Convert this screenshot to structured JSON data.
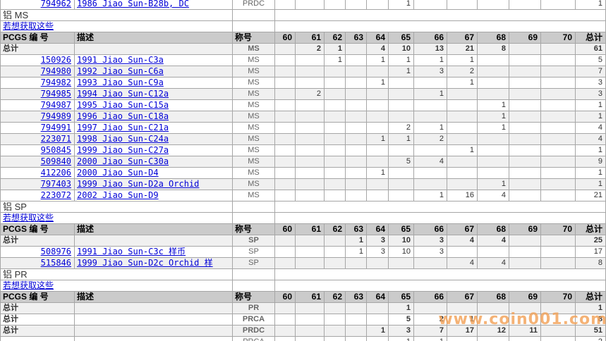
{
  "watermark": {
    "text": "www.coin001.com",
    "color": "#F2A055"
  },
  "grades": [
    "60",
    "61",
    "62",
    "63",
    "64",
    "65",
    "66",
    "67",
    "68",
    "69",
    "70"
  ],
  "header_labels": {
    "pcgs": "PCGS 编 号",
    "desc": "描述",
    "designation": "称号",
    "total": "总计"
  },
  "total_row_label": "总计",
  "link_label": "若想获取这些",
  "partial_top_row": {
    "pcgs": "794962",
    "desc": "1986 Jiao Sun-B28b, DC",
    "designation": "PRDC",
    "values": {
      "65": "1"
    },
    "total": "1"
  },
  "sections": [
    {
      "title": "铝 MS",
      "total_rows": [
        {
          "designation": "MS",
          "values": {
            "61": "2",
            "62": "1",
            "64": "4",
            "65": "10",
            "66": "13",
            "67": "21",
            "68": "8"
          },
          "total": "61"
        }
      ],
      "coin_rows": [
        {
          "pcgs": "150926",
          "desc": "1991 Jiao Sun-C3a",
          "designation": "MS",
          "values": {
            "62": "1",
            "64": "1",
            "65": "1",
            "66": "1",
            "67": "1"
          },
          "total": "5"
        },
        {
          "pcgs": "794980",
          "desc": "1992 Jiao Sun-C6a",
          "designation": "MS",
          "values": {
            "65": "1",
            "66": "3",
            "67": "2"
          },
          "total": "7"
        },
        {
          "pcgs": "794982",
          "desc": "1993 Jiao Sun-C9a",
          "designation": "MS",
          "values": {
            "64": "1",
            "67": "1"
          },
          "total": "3"
        },
        {
          "pcgs": "794985",
          "desc": "1994 Jiao Sun-C12a",
          "designation": "MS",
          "values": {
            "61": "2",
            "66": "1"
          },
          "total": "3"
        },
        {
          "pcgs": "794987",
          "desc": "1995 Jiao Sun-C15a",
          "designation": "MS",
          "values": {
            "68": "1"
          },
          "total": "1"
        },
        {
          "pcgs": "794989",
          "desc": "1996 Jiao Sun-C18a",
          "designation": "MS",
          "values": {
            "68": "1"
          },
          "total": "1"
        },
        {
          "pcgs": "794991",
          "desc": "1997 Jiao Sun-C21a",
          "designation": "MS",
          "values": {
            "65": "2",
            "66": "1",
            "68": "1"
          },
          "total": "4"
        },
        {
          "pcgs": "223071",
          "desc": "1998 Jiao Sun-C24a",
          "designation": "MS",
          "values": {
            "64": "1",
            "65": "1",
            "66": "2"
          },
          "total": "4"
        },
        {
          "pcgs": "950845",
          "desc": "1999 Jiao Sun-C27a",
          "designation": "MS",
          "values": {
            "67": "1"
          },
          "total": "1"
        },
        {
          "pcgs": "509840",
          "desc": "2000 Jiao Sun-C30a",
          "designation": "MS",
          "values": {
            "65": "5",
            "66": "4"
          },
          "total": "9"
        },
        {
          "pcgs": "412206",
          "desc": "2000 Jiao Sun-D4",
          "designation": "MS",
          "values": {
            "64": "1"
          },
          "total": "1"
        },
        {
          "pcgs": "797403",
          "desc": "1999 Jiao Sun-D2a Orchid",
          "designation": "MS",
          "values": {
            "68": "1"
          },
          "total": "1"
        },
        {
          "pcgs": "223072",
          "desc": "2002 Jiao Sun-D9",
          "designation": "MS",
          "values": {
            "66": "1",
            "67": "16",
            "68": "4"
          },
          "total": "21"
        }
      ]
    },
    {
      "title": "铝 SP",
      "total_rows": [
        {
          "designation": "SP",
          "values": {
            "63": "1",
            "64": "3",
            "65": "10",
            "66": "3",
            "67": "4",
            "68": "4"
          },
          "total": "25"
        }
      ],
      "coin_rows": [
        {
          "pcgs": "508976",
          "desc": "1991 Jiao Sun-C3c 样币",
          "designation": "SP",
          "values": {
            "63": "1",
            "64": "3",
            "65": "10",
            "66": "3"
          },
          "total": "17"
        },
        {
          "pcgs": "515846",
          "desc": "1999 Jiao Sun-D2c Orchid 样",
          "designation": "SP",
          "values": {
            "67": "4",
            "68": "4"
          },
          "total": "8"
        }
      ]
    },
    {
      "title": "铝 PR",
      "total_rows": [
        {
          "designation": "PR",
          "values": {
            "65": "1"
          },
          "total": "1"
        },
        {
          "designation": "PRCA",
          "values": {
            "65": "5",
            "66": "2",
            "67": "1"
          },
          "total": "8"
        },
        {
          "designation": "PRDC",
          "values": {
            "64": "1",
            "65": "3",
            "66": "7",
            "67": "17",
            "68": "12",
            "69": "11"
          },
          "total": "51"
        }
      ],
      "coin_rows": []
    }
  ],
  "partial_bottom_row": {
    "pcgs": "",
    "desc": "",
    "designation": "PRCA",
    "values": {
      "65": "1",
      "66": "1"
    },
    "total": "2"
  }
}
